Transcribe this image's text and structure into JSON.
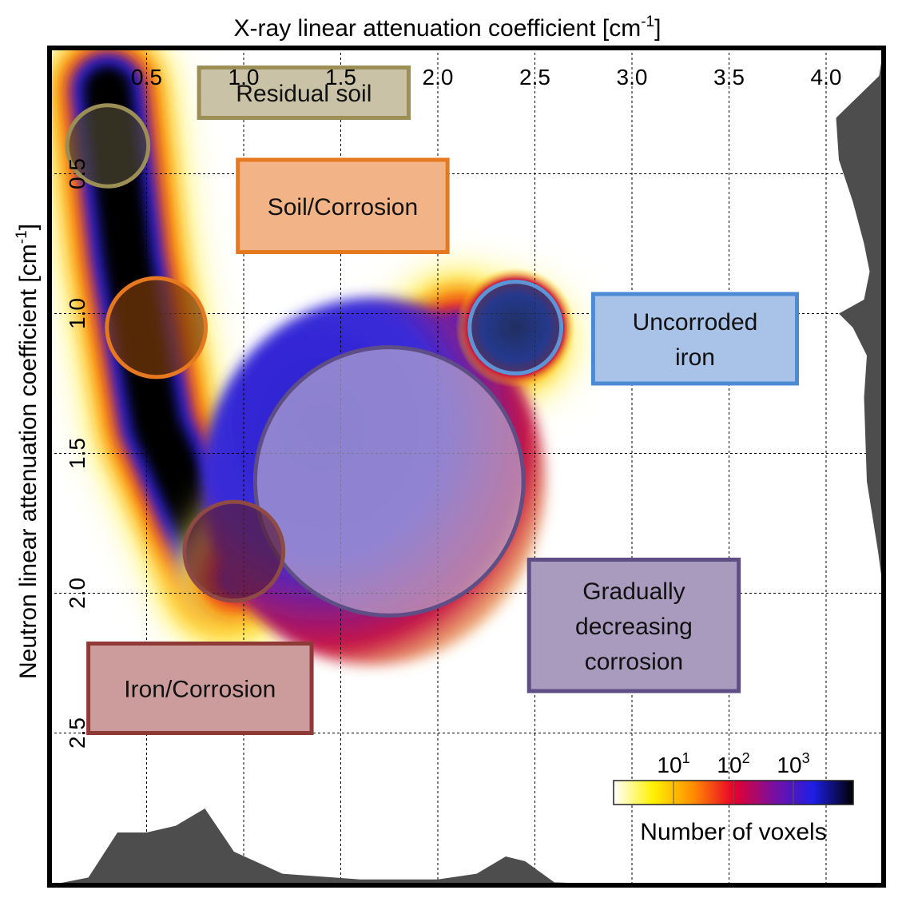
{
  "chart_data": {
    "type": "heatmap",
    "title": "",
    "xlabel": "X-ray linear attenuation coefficient [cm",
    "xlabel_sup": "-1",
    "xlabel_close": "]",
    "ylabel": "Neutron linear attenuation coefficient [cm",
    "ylabel_sup": "-1",
    "ylabel_close": "]",
    "x_axis_position": "top",
    "y_axis_direction": "increasing downward",
    "xlim": [
      0.0,
      4.3
    ],
    "ylim": [
      0.05,
      2.95
    ],
    "xticks": [
      0.5,
      1.0,
      1.5,
      2.0,
      2.5,
      3.0,
      3.5,
      4.0
    ],
    "xtick_labels": [
      "0.5",
      "1.0",
      "1.5",
      "2.0",
      "2.5",
      "3.0",
      "3.5",
      "4.0"
    ],
    "yticks": [
      0.5,
      1.0,
      1.5,
      2.0,
      2.5
    ],
    "ytick_labels": [
      "0.5",
      "1.0",
      "1.5",
      "2.0",
      "2.5"
    ],
    "grid": true,
    "density_ridge": {
      "description_free": true,
      "path_points": [
        [
          0.3,
          0.2
        ],
        [
          0.4,
          0.8
        ],
        [
          0.55,
          1.4
        ],
        [
          0.9,
          1.95
        ]
      ],
      "branch_points": [
        [
          0.95,
          1.95
        ],
        [
          1.6,
          1.35
        ],
        [
          2.1,
          1.05
        ],
        [
          2.4,
          1.1
        ]
      ],
      "fan_center": [
        1.75,
        1.6
      ]
    },
    "colorbar": {
      "label": "Number of voxels",
      "scale": "log",
      "ticks": [
        {
          "base": "10",
          "exp": "1",
          "pos": 0.25
        },
        {
          "base": "10",
          "exp": "2",
          "pos": 0.5
        },
        {
          "base": "10",
          "exp": "3",
          "pos": 0.75
        }
      ],
      "colors": [
        "#ffffff",
        "#fff200",
        "#ff8c00",
        "#e8002a",
        "#7a0fa0",
        "#1e1ee6",
        "#000000"
      ]
    },
    "marginal_x": {
      "color": "#4d4d4d",
      "x": [
        0.0,
        0.2,
        0.35,
        0.5,
        0.65,
        0.8,
        0.95,
        1.2,
        1.6,
        2.0,
        2.2,
        2.35,
        2.45,
        2.6,
        3.0,
        4.2
      ],
      "rel_height": [
        0.0,
        0.08,
        0.55,
        0.55,
        0.62,
        0.8,
        0.35,
        0.12,
        0.06,
        0.06,
        0.12,
        0.3,
        0.25,
        0.03,
        0.0,
        0.0
      ]
    },
    "marginal_y": {
      "color": "#4d4d4d",
      "y": [
        0.05,
        0.15,
        0.3,
        0.45,
        0.6,
        0.75,
        0.85,
        0.95,
        1.0,
        1.05,
        1.15,
        1.3,
        1.6,
        1.85,
        2.0,
        2.95
      ],
      "rel_width": [
        0.0,
        0.08,
        0.85,
        0.8,
        0.55,
        0.35,
        0.25,
        0.35,
        0.8,
        0.55,
        0.3,
        0.35,
        0.3,
        0.1,
        0.0,
        0.0
      ]
    },
    "regions": [
      {
        "label_lines": [
          "Residual soil"
        ],
        "circle_center": [
          0.3,
          0.4
        ],
        "circle_r_x": 0.23,
        "stroke": "#9b8f55",
        "fill": "#4a4530",
        "box": {
          "x0": 0.77,
          "x1": 1.85,
          "y0": 0.12,
          "y1": 0.3
        },
        "box_fill": "#c9c2a6",
        "box_stroke": "#9b8f55"
      },
      {
        "label_lines": [
          "Soil/Corrosion"
        ],
        "circle_center": [
          0.55,
          1.05
        ],
        "circle_r_x": 0.28,
        "stroke": "#e67820",
        "fill": "#7a3a08",
        "box": {
          "x0": 0.97,
          "x1": 2.05,
          "y0": 0.45,
          "y1": 0.78
        },
        "box_fill": "#f2b486",
        "box_stroke": "#e67820"
      },
      {
        "label_lines": [
          "Uncorroded",
          "iron"
        ],
        "circle_center": [
          2.4,
          1.05
        ],
        "circle_r_x": 0.26,
        "stroke": "#5b95d5",
        "fill": "#2a3f66",
        "box": {
          "x0": 2.8,
          "x1": 3.85,
          "y0": 0.93,
          "y1": 1.25
        },
        "box_fill": "#a9c3e8",
        "box_stroke": "#4c8ad4"
      },
      {
        "label_lines": [
          "Gradually",
          "decreasing",
          "corrosion"
        ],
        "circle_center": [
          1.75,
          1.6
        ],
        "circle_r_x": 0.76,
        "stroke": "#5f4e86",
        "fill": "#b6aacf",
        "box": {
          "x0": 2.47,
          "x1": 3.55,
          "y0": 1.88,
          "y1": 2.35
        },
        "box_fill": "#a99bbd",
        "box_stroke": "#5f4e86"
      },
      {
        "label_lines": [
          "Iron/Corrosion"
        ],
        "circle_center": [
          0.95,
          1.85
        ],
        "circle_r_x": 0.28,
        "stroke": "#8f4a45",
        "fill": "#5a1e3a",
        "box": {
          "x0": 0.2,
          "x1": 1.35,
          "y0": 2.18,
          "y1": 2.5
        },
        "box_fill": "#cc9b9b",
        "box_stroke": "#8f3a37"
      }
    ]
  }
}
